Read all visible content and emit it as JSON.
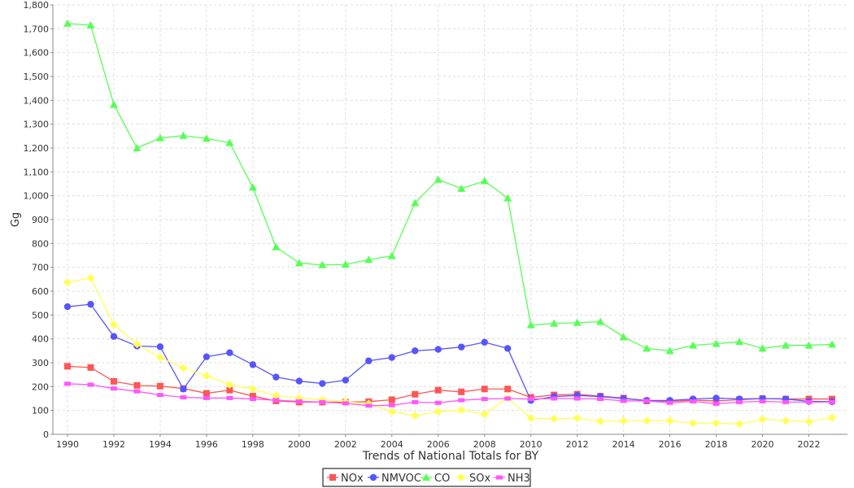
{
  "chart_data": {
    "type": "line",
    "title": "",
    "xlabel": "Trends of National Totals for BY",
    "ylabel": "Gg",
    "ylim": [
      0,
      1800
    ],
    "yticks": [
      0,
      100,
      200,
      300,
      400,
      500,
      600,
      700,
      800,
      900,
      1000,
      1100,
      1200,
      1300,
      1400,
      1500,
      1600,
      1700,
      1800
    ],
    "ytick_labels": [
      "0",
      "100",
      "200",
      "300",
      "400",
      "500",
      "600",
      "700",
      "800",
      "900",
      "1,000",
      "1,100",
      "1,200",
      "1,300",
      "1,400",
      "1,500",
      "1,600",
      "1,700",
      "1,800"
    ],
    "xlim": [
      1989.4,
      2023.7
    ],
    "xticks": [
      1990,
      1992,
      1994,
      1996,
      1998,
      2000,
      2002,
      2004,
      2006,
      2008,
      2010,
      2012,
      2014,
      2016,
      2018,
      2020,
      2022
    ],
    "xtick_labels": [
      "1990",
      "1992",
      "1994",
      "1996",
      "1998",
      "2000",
      "2002",
      "2004",
      "2006",
      "2008",
      "2010",
      "2012",
      "2014",
      "2016",
      "2018",
      "2020",
      "2022"
    ],
    "grid": true,
    "legend_position": "bottom",
    "x": [
      1990,
      1991,
      1992,
      1993,
      1994,
      1995,
      1996,
      1997,
      1998,
      1999,
      2000,
      2001,
      2002,
      2003,
      2004,
      2005,
      2006,
      2007,
      2008,
      2009,
      2010,
      2011,
      2012,
      2013,
      2014,
      2015,
      2016,
      2017,
      2018,
      2019,
      2020,
      2021,
      2022,
      2023
    ],
    "series": [
      {
        "name": "NOx",
        "color": "#ff5555",
        "marker": "square",
        "values": [
          285,
          280,
          222,
          205,
          202,
          192,
          172,
          185,
          160,
          140,
          135,
          135,
          135,
          137,
          145,
          168,
          185,
          178,
          190,
          190,
          155,
          165,
          168,
          160,
          152,
          140,
          138,
          143,
          140,
          145,
          150,
          148,
          148,
          148
        ]
      },
      {
        "name": "NMVOC",
        "color": "#5555ff",
        "marker": "circle",
        "values": [
          535,
          545,
          410,
          370,
          367,
          190,
          325,
          342,
          292,
          240,
          223,
          213,
          227,
          308,
          322,
          350,
          356,
          366,
          386,
          360,
          142,
          158,
          163,
          158,
          150,
          142,
          142,
          148,
          152,
          148,
          150,
          148,
          138,
          137
        ]
      },
      {
        "name": "CO",
        "color": "#55ff55",
        "marker": "triangle",
        "values": [
          1722,
          1715,
          1382,
          1200,
          1242,
          1252,
          1240,
          1222,
          1035,
          785,
          718,
          710,
          712,
          732,
          748,
          970,
          1068,
          1030,
          1062,
          990,
          458,
          465,
          468,
          472,
          408,
          360,
          350,
          373,
          380,
          388,
          360,
          373,
          373,
          377
        ]
      },
      {
        "name": "SOx",
        "color": "#ffff55",
        "marker": "diamond",
        "values": [
          637,
          655,
          460,
          378,
          322,
          278,
          245,
          208,
          190,
          162,
          152,
          145,
          137,
          128,
          95,
          78,
          95,
          102,
          85,
          153,
          68,
          65,
          68,
          55,
          57,
          57,
          57,
          47,
          47,
          43,
          63,
          57,
          53,
          70
        ]
      },
      {
        "name": "NH3",
        "color": "#ff55ff",
        "marker": "rect",
        "values": [
          212,
          208,
          192,
          180,
          165,
          155,
          152,
          152,
          148,
          143,
          138,
          135,
          130,
          120,
          122,
          135,
          132,
          143,
          148,
          150,
          148,
          150,
          150,
          148,
          140,
          140,
          132,
          138,
          128,
          135,
          138,
          135,
          135,
          135
        ]
      }
    ]
  }
}
